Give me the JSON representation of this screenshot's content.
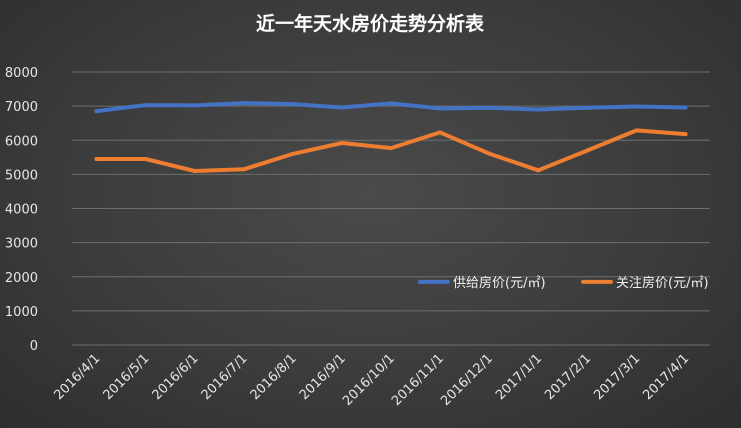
{
  "chart_data": {
    "type": "line",
    "title": "近一年天水房价走势分析表",
    "xlabel": "",
    "ylabel": "",
    "ylim": [
      0,
      8000
    ],
    "yticks": [
      0,
      1000,
      2000,
      3000,
      4000,
      5000,
      6000,
      7000,
      8000
    ],
    "grid": true,
    "legend_position": "inside-bottom-right",
    "categories": [
      "2016/4/1",
      "2016/5/1",
      "2016/6/1",
      "2016/7/1",
      "2016/8/1",
      "2016/9/1",
      "2016/10/1",
      "2016/11/1",
      "2016/12/1",
      "2017/1/1",
      "2017/2/1",
      "2017/3/1",
      "2017/4/1"
    ],
    "series": [
      {
        "name": "供给房价(元/㎡)",
        "color": "#4472c4",
        "values": [
          6850,
          7030,
          7020,
          7090,
          7060,
          6960,
          7080,
          6930,
          6950,
          6900,
          6950,
          6990,
          6960
        ]
      },
      {
        "name": "关注房价(元/㎡)",
        "color": "#ed7d31",
        "values": [
          5450,
          5450,
          5100,
          5150,
          5600,
          5920,
          5770,
          6230,
          5610,
          5120,
          5700,
          6290,
          6180
        ]
      }
    ]
  }
}
